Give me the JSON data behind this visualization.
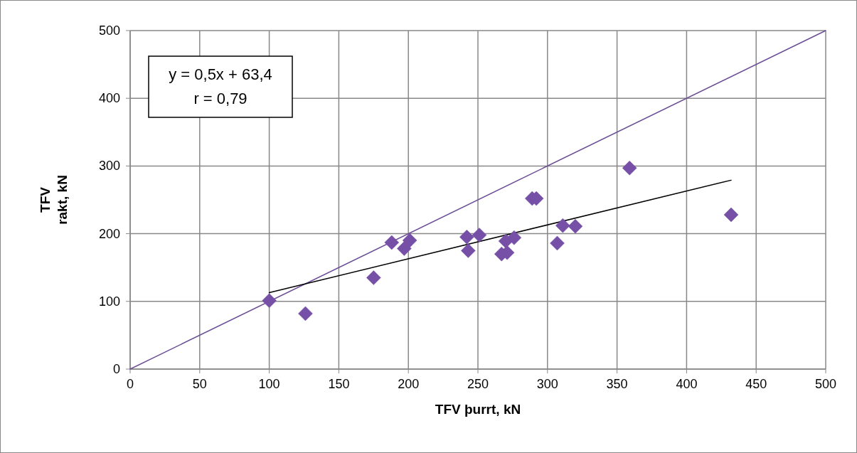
{
  "chart_data": {
    "type": "scatter",
    "xlabel": "TFV þurrt, kN",
    "ylabel": "TFV\nrakt, kN",
    "xlim": [
      0,
      500
    ],
    "xticks": [
      0,
      50,
      100,
      150,
      200,
      250,
      300,
      350,
      400,
      450,
      500
    ],
    "ylim": [
      0,
      500
    ],
    "yticks": [
      0,
      100,
      200,
      300,
      400,
      500
    ],
    "grid": true,
    "annotations": [
      "y = 0,5x + 63,4",
      "r = 0,79"
    ],
    "series": [
      {
        "type": "line",
        "color": "#6b4e96",
        "x": [
          0,
          500
        ],
        "values": [
          0,
          500
        ],
        "marker": "none"
      },
      {
        "type": "line",
        "color": "#000000",
        "x": [
          100,
          432
        ],
        "values": [
          113,
          279
        ],
        "marker": "none"
      },
      {
        "marker": "diamond",
        "color": "#7650a6",
        "x": [
          100,
          126,
          175,
          188,
          197,
          201,
          242,
          243,
          251,
          267,
          271,
          270,
          276,
          289,
          292,
          307,
          311,
          320,
          359,
          432
        ],
        "values": [
          101,
          82,
          135,
          187,
          178,
          190,
          195,
          175,
          198,
          170,
          172,
          189,
          194,
          252,
          252,
          186,
          212,
          211,
          297,
          228
        ]
      }
    ]
  }
}
